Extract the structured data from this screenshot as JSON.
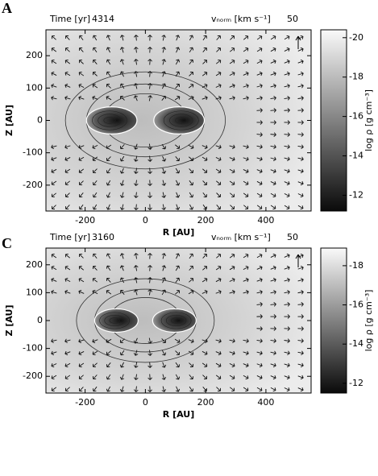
{
  "chart_data": [
    {
      "type": "heatmap",
      "panel": "A",
      "time_label": "Time [yr]",
      "time": 4314,
      "velocity_label": "vₙₒᵣₘ [km s⁻¹]",
      "velocity_norm": 50,
      "xlabel": "R [AU]",
      "ylabel": "Z [AU]",
      "colorbar_label": "log ρ [g cm⁻³]",
      "xlim": [
        -330,
        550
      ],
      "xticks": [
        -200,
        0,
        200,
        400
      ],
      "ylim": [
        -280,
        280
      ],
      "yticks": [
        -200,
        -100,
        0,
        100,
        200
      ],
      "clim": [
        -20.4,
        -11.2
      ],
      "cticks": [
        -20,
        -18,
        -16,
        -14,
        -12
      ]
    },
    {
      "type": "heatmap",
      "panel": "C",
      "time_label": "Time [yr]",
      "time": 3160,
      "velocity_label": "vₙₒᵣₘ [km s⁻¹]",
      "velocity_norm": 50,
      "xlabel": "R [AU]",
      "ylabel": "Z [AU]",
      "colorbar_label": "log ρ [g cm⁻³]",
      "xlim": [
        -330,
        550
      ],
      "xticks": [
        -200,
        0,
        200,
        400
      ],
      "ylim": [
        -260,
        260
      ],
      "yticks": [
        -200,
        -100,
        0,
        100,
        200
      ],
      "clim": [
        -18.9,
        -11.5
      ],
      "cticks": [
        -18,
        -16,
        -14,
        -12
      ]
    }
  ]
}
